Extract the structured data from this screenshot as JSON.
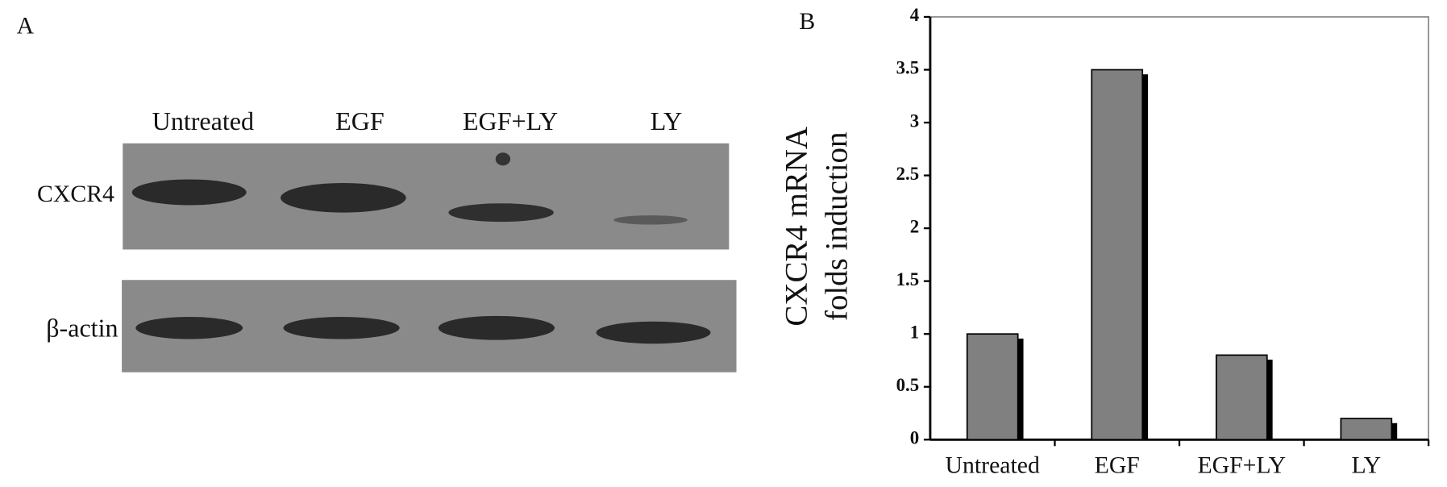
{
  "panels": {
    "a": "A",
    "b": "B"
  },
  "blot": {
    "lanes": [
      "Untreated",
      "EGF",
      "EGF+LY",
      "LY"
    ],
    "rows": [
      "CXCR4",
      "β-actin"
    ]
  },
  "chart_data": {
    "type": "bar",
    "ylabel": [
      "CXCR4 mRNA",
      "folds induction"
    ],
    "categories": [
      "Untreated",
      "EGF",
      "EGF+LY",
      "LY"
    ],
    "values": [
      1,
      3.5,
      0.8,
      0.2
    ],
    "color": "#808080",
    "ylim": [
      0,
      4
    ],
    "yticks": [
      0,
      0.5,
      1,
      1.5,
      2,
      2.5,
      3,
      3.5,
      4
    ]
  }
}
